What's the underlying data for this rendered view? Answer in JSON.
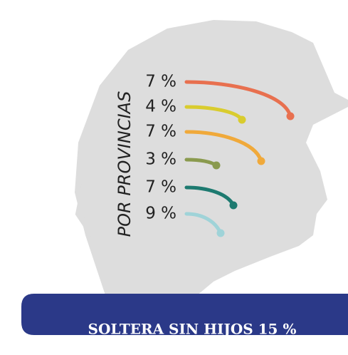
{
  "vertical_label": "POR PROVINCIAS",
  "items": [
    {
      "label": "7 %",
      "color": "#e8704f"
    },
    {
      "label": "4 %",
      "color": "#d9cc2e"
    },
    {
      "label": "7 %",
      "color": "#f0a93a"
    },
    {
      "label": "3 %",
      "color": "#8a9a4e"
    },
    {
      "label": "7 %",
      "color": "#1d7a70"
    },
    {
      "label": "9 %",
      "color": "#9fd3d8"
    }
  ],
  "banner": "SOLTERA SIN HIJOS 15 %"
}
